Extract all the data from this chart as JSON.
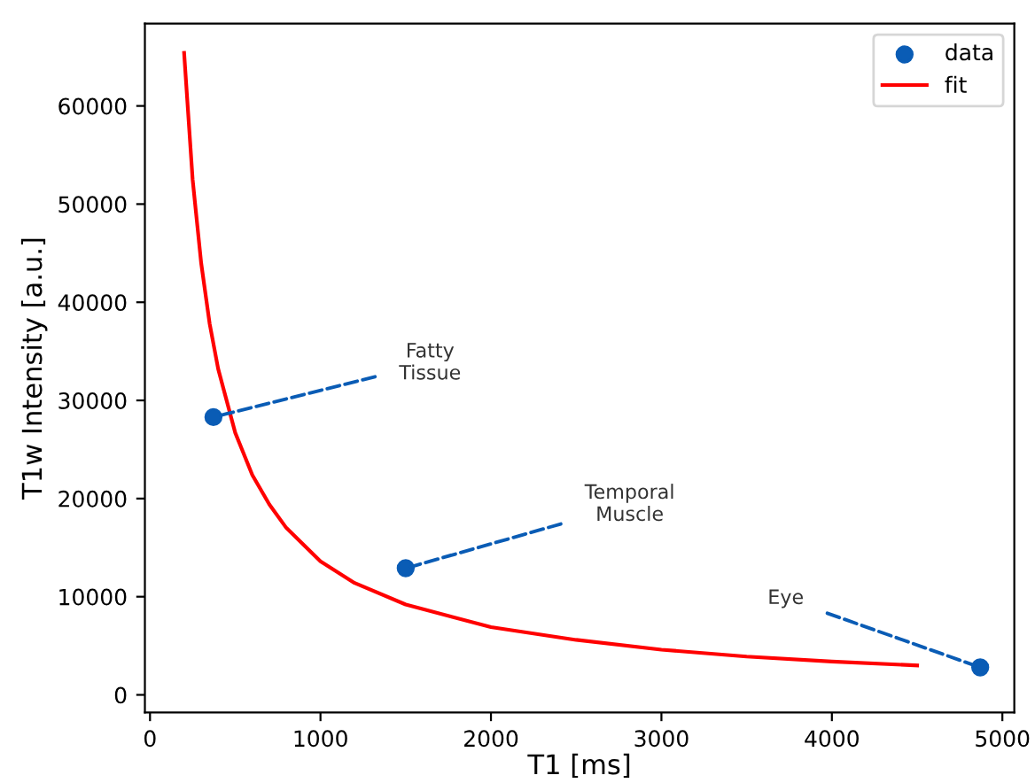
{
  "chart_data": {
    "type": "scatter",
    "xlabel": "T1 [ms]",
    "ylabel": "T1w Intensity [a.u.]",
    "xlim": [
      -30,
      5070
    ],
    "ylim": [
      -1800,
      68400
    ],
    "xticks": [
      0,
      1000,
      2000,
      3000,
      4000,
      5000
    ],
    "yticks": [
      0,
      10000,
      20000,
      30000,
      40000,
      50000,
      60000
    ],
    "grid": false,
    "legend": "top right",
    "series": [
      {
        "name": "data",
        "type": "scatter",
        "marker": "circle",
        "color": "#0a5cb5",
        "x": [
          372,
          1500,
          4870
        ],
        "values": [
          28300,
          12900,
          2800
        ]
      },
      {
        "name": "fit",
        "type": "line",
        "marker": "none",
        "line_style": "solid",
        "color": "#ff0000",
        "x": [
          200,
          250,
          300,
          350,
          400,
          500,
          600,
          700,
          800,
          1000,
          1200,
          1500,
          2000,
          2500,
          3000,
          3500,
          4000,
          4500
        ],
        "values": [
          65400,
          52500,
          44000,
          37800,
          33200,
          26700,
          22400,
          19400,
          17000,
          13600,
          11400,
          9200,
          6900,
          5600,
          4600,
          3900,
          3400,
          3000
        ]
      }
    ],
    "annotations": [
      {
        "text": "Fatty\nTissue",
        "x": 372,
        "y": 28300
      },
      {
        "text": "Temporal\nMuscle",
        "x": 1500,
        "y": 12900
      },
      {
        "text": "Eye",
        "x": 4870,
        "y": 2800
      }
    ]
  }
}
